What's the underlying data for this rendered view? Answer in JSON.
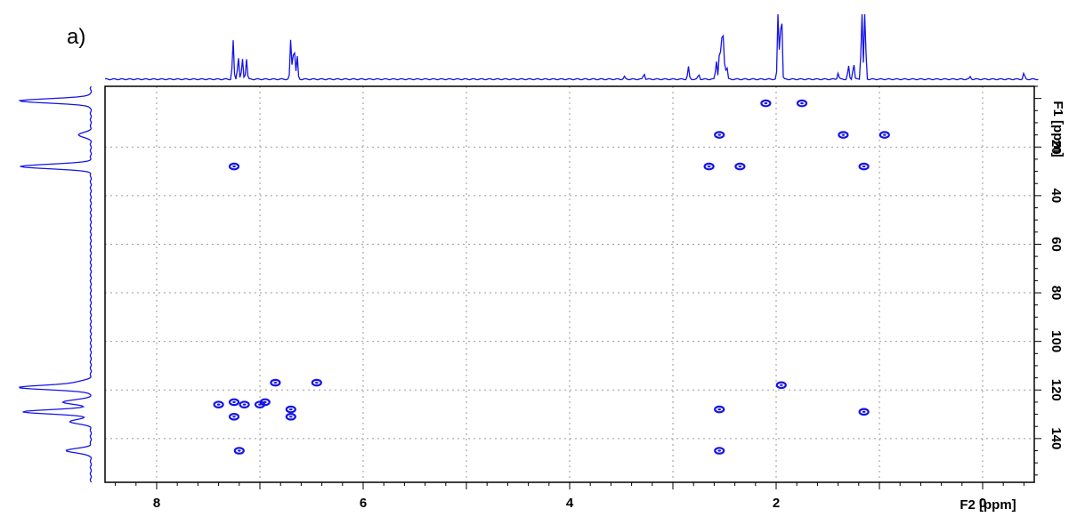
{
  "panel_label": "a)",
  "chart_data": {
    "type": "heatmap",
    "subtype": "2D NMR correlation spectrum (HSQC-like)",
    "title": "",
    "x_axis": {
      "label": "F2 [ppm]",
      "range": [
        8.5,
        -0.5
      ],
      "reversed": true,
      "major_ticks": [
        8,
        6,
        4,
        2,
        0
      ],
      "tick_labels": [
        "8",
        "6",
        "4",
        "2",
        "0"
      ],
      "minor_step": 0.2
    },
    "y_axis": {
      "label": "F1 [ppm]",
      "range": [
        -5,
        158
      ],
      "reversed": true,
      "position": "right",
      "major_ticks": [
        20,
        40,
        60,
        80,
        100,
        120,
        140
      ],
      "tick_labels": [
        "20",
        "40",
        "60",
        "80",
        "100",
        "120",
        "140"
      ],
      "minor_step": 5
    },
    "grid": true,
    "grid_style": "dotted",
    "color": "#1414e6",
    "cross_peaks": [
      {
        "x": 2.1,
        "y": 2
      },
      {
        "x": 1.75,
        "y": 2
      },
      {
        "x": 2.55,
        "y": 15
      },
      {
        "x": 1.35,
        "y": 15
      },
      {
        "x": 0.95,
        "y": 15
      },
      {
        "x": 7.25,
        "y": 28
      },
      {
        "x": 2.65,
        "y": 28
      },
      {
        "x": 2.35,
        "y": 28
      },
      {
        "x": 1.15,
        "y": 28
      },
      {
        "x": 6.85,
        "y": 117
      },
      {
        "x": 6.45,
        "y": 117
      },
      {
        "x": 1.95,
        "y": 118
      },
      {
        "x": 7.4,
        "y": 126
      },
      {
        "x": 7.25,
        "y": 125
      },
      {
        "x": 7.15,
        "y": 126
      },
      {
        "x": 7.0,
        "y": 126
      },
      {
        "x": 6.95,
        "y": 125
      },
      {
        "x": 6.7,
        "y": 128
      },
      {
        "x": 6.7,
        "y": 131
      },
      {
        "x": 7.25,
        "y": 131
      },
      {
        "x": 2.55,
        "y": 128
      },
      {
        "x": 1.15,
        "y": 129
      },
      {
        "x": 7.2,
        "y": 145
      },
      {
        "x": 2.55,
        "y": 145
      }
    ],
    "projection_f2_peaks": [
      {
        "x": 7.26,
        "h": 0.63
      },
      {
        "x": 7.21,
        "h": 0.38
      },
      {
        "x": 7.17,
        "h": 0.33
      },
      {
        "x": 7.13,
        "h": 0.33
      },
      {
        "x": 6.7,
        "h": 0.67
      },
      {
        "x": 6.67,
        "h": 0.63
      },
      {
        "x": 6.64,
        "h": 0.38
      },
      {
        "x": 3.47,
        "h": 0.04
      },
      {
        "x": 3.28,
        "h": 0.1
      },
      {
        "x": 2.85,
        "h": 0.2
      },
      {
        "x": 2.75,
        "h": 0.08
      },
      {
        "x": 2.58,
        "h": 0.31
      },
      {
        "x": 2.55,
        "h": 0.38
      },
      {
        "x": 2.53,
        "h": 0.72
      },
      {
        "x": 2.51,
        "h": 0.72
      },
      {
        "x": 2.48,
        "h": 0.25
      },
      {
        "x": 1.98,
        "h": 1.3
      },
      {
        "x": 1.95,
        "h": 1.3
      },
      {
        "x": 1.4,
        "h": 0.1
      },
      {
        "x": 1.3,
        "h": 0.22
      },
      {
        "x": 1.25,
        "h": 0.28
      },
      {
        "x": 1.17,
        "h": 1.3
      },
      {
        "x": 1.14,
        "h": 1.3
      },
      {
        "x": 0.12,
        "h": 0.04
      },
      {
        "x": -0.4,
        "h": 0.1
      }
    ],
    "projection_f1_peaks": [
      {
        "y": 1,
        "h": 1.0
      },
      {
        "y": 15,
        "h": 0.18
      },
      {
        "y": 28,
        "h": 1.0
      },
      {
        "y": 117,
        "h": 0.18
      },
      {
        "y": 119,
        "h": 1.0
      },
      {
        "y": 125,
        "h": 0.4
      },
      {
        "y": 129,
        "h": 0.95
      },
      {
        "y": 133,
        "h": 0.3
      },
      {
        "y": 145,
        "h": 0.35
      }
    ]
  }
}
